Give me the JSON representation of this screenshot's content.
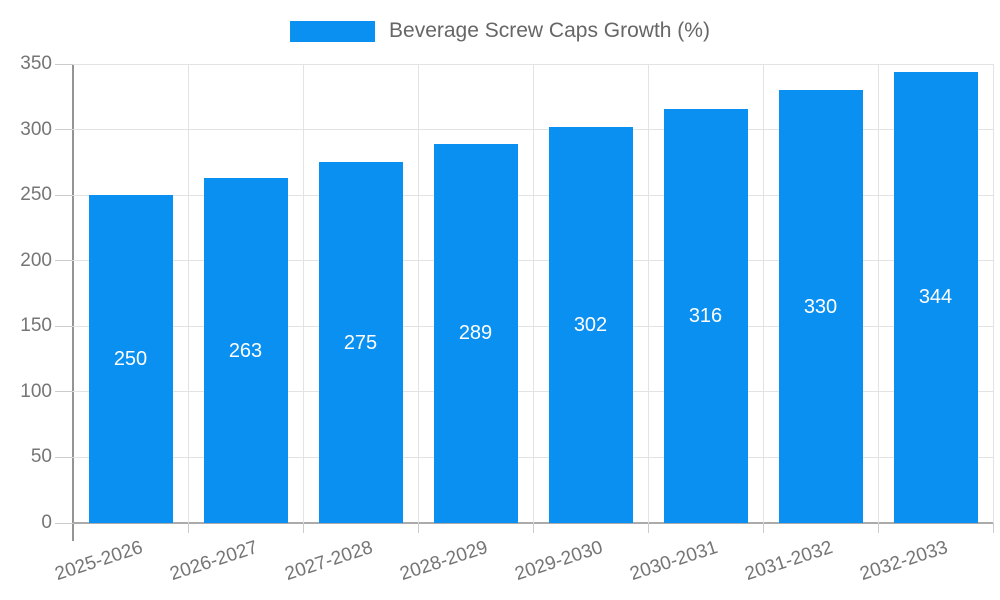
{
  "legend": {
    "label": "Beverage Screw Caps Growth (%)"
  },
  "chart_data": {
    "type": "bar",
    "title": "Beverage Screw Caps Growth (%)",
    "categories": [
      "2025-2026",
      "2026-2027",
      "2027-2028",
      "2028-2029",
      "2029-2030",
      "2030-2031",
      "2031-2032",
      "2032-2033"
    ],
    "values": [
      250,
      263,
      275,
      289,
      302,
      316,
      330,
      344
    ],
    "xlabel": "",
    "ylabel": "",
    "ylim": [
      0,
      350
    ],
    "yticks": [
      0,
      50,
      100,
      150,
      200,
      250,
      300,
      350
    ],
    "grid": true,
    "legend_position": "top-center",
    "colors": {
      "bar": "#0a90f0",
      "bar_label": "#ffffff",
      "grid": "#e3e3e3",
      "axis": "#a0a0a0",
      "tick": "#cccccc",
      "tick_text": "#757575",
      "legend_text": "#666666"
    }
  }
}
